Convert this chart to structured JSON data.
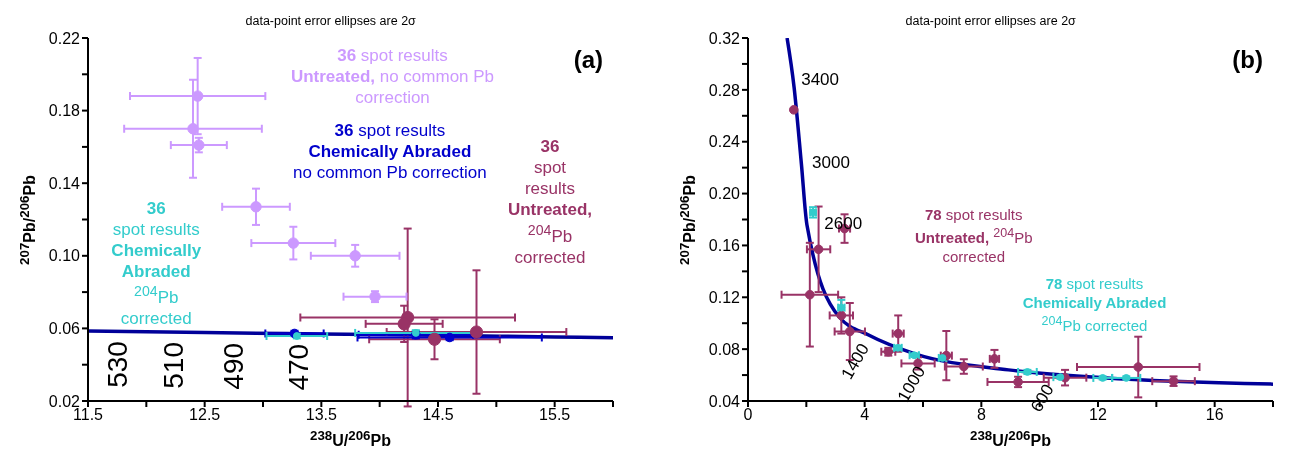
{
  "chart_data": [
    {
      "type": "scatter",
      "title": "data-point error ellipses are 2σ",
      "xlabel": "$^{238}$U/$^{206}$Pb",
      "ylabel": "$^{207}$Pb/$^{206}$Pb",
      "xlim": [
        11.5,
        16
      ],
      "xticks": [
        11.5,
        {
          "value": 12,
          "label": null
        },
        12.5,
        {
          "value": 13,
          "label": null
        },
        13.5,
        {
          "value": 14,
          "label": null
        },
        14.5,
        {
          "value": 15,
          "label": null
        },
        15.5,
        {
          "value": 16,
          "label": null
        }
      ],
      "ylim": [
        0.02,
        0.22
      ],
      "yticks": [
        0.02,
        {
          "value": 0.04,
          "label": null
        },
        0.06,
        {
          "value": 0.08,
          "label": null
        },
        {
          "value": 0.1,
          "label": "0.10"
        },
        {
          "value": 0.12,
          "label": null
        },
        0.14,
        {
          "value": 0.16,
          "label": null
        },
        0.18,
        {
          "value": 0.2,
          "label": null
        },
        0.22
      ],
      "annotations": [
        "(a)",
        {
          "text": "530",
          "x": 11.67,
          "y": 0.0585
        },
        {
          "text": "510",
          "x": 12.15,
          "y": 0.058
        },
        {
          "text": "490",
          "x": 12.66,
          "y": 0.0575
        },
        {
          "text": "470",
          "x": 13.22,
          "y": 0.057
        }
      ],
      "series": [
        {
          "type": "line",
          "color": "#000099",
          "marker": "none",
          "line_style": "solid",
          "x": [
            11.5,
            12.5,
            13.5,
            14.5,
            15.5,
            16
          ],
          "values": [
            0.0585,
            0.0577,
            0.0569,
            0.0562,
            0.0553,
            0.0549
          ]
        },
        {
          "name": "36 spot results Untreated, $^{204}$Pb corrected",
          "color": "#993366",
          "x": [
            14.24,
            14.83,
            14.21,
            14.47
          ],
          "values": [
            0.066,
            0.058,
            0.0625,
            0.054
          ],
          "xerrors": [
            0.92,
            0.77,
            0.33,
            0.56
          ],
          "errors": [
            0.049,
            0.034,
            0.01,
            0.011
          ]
        },
        {
          "name": "36 spot results Untreated, no common Pb correction",
          "color": "#cc99ff",
          "x": [
            12.4,
            12.44,
            12.45,
            12.94,
            13.26,
            13.79,
            13.96
          ],
          "values": [
            0.17,
            0.188,
            0.161,
            0.127,
            0.107,
            0.1,
            0.0775
          ],
          "xerrors": [
            0.59,
            0.58,
            0.24,
            0.29,
            0.36,
            0.38,
            0.27
          ],
          "errors": [
            0.027,
            0.021,
            0.004,
            0.01,
            0.009,
            0.006,
            0.003
          ]
        },
        {
          "name": "36 spot results Chemically Abraded no common Pb correction",
          "color": "#0000cc",
          "x": [
            13.27,
            14.31,
            14.6
          ],
          "values": [
            0.0572,
            0.0565,
            0.055
          ],
          "xerrors": [
            0.25,
            0.49,
            0.79
          ],
          "errors": [
            0.0015,
            0.002,
            0.0015
          ]
        },
        {
          "name": "36 spot results Chemically Abraded $^{204}$Pb corrected",
          "color": "#33cccc",
          "x": [
            13.29,
            14.31
          ],
          "values": [
            0.0558,
            0.0575
          ],
          "xerrors": [
            0.26,
            0.52
          ],
          "errors": [
            0.0013,
            0.0015
          ]
        }
      ]
    },
    {
      "type": "scatter",
      "title": "data-point error ellipses are 2σ",
      "xlabel": "$^{238}$U/$^{206}$Pb",
      "ylabel": "$^{207}$Pb/$^{206}$Pb",
      "xlim": [
        0,
        18
      ],
      "xticks": [
        0,
        {
          "value": 2,
          "label": null
        },
        4,
        {
          "value": 6,
          "label": null
        },
        8,
        {
          "value": 10,
          "label": null
        },
        12,
        {
          "value": 14,
          "label": null
        },
        16,
        {
          "value": 18,
          "label": null
        }
      ],
      "ylim": [
        0.04,
        0.32
      ],
      "yticks": [
        0.04,
        {
          "value": 0.06,
          "label": null
        },
        0.08,
        {
          "value": 0.1,
          "label": null
        },
        0.12,
        {
          "value": 0.14,
          "label": null
        },
        0.16,
        {
          "value": 0.18,
          "label": null
        },
        {
          "value": 0.2,
          "label": "0.20"
        },
        {
          "value": 0.22,
          "label": null
        },
        0.24,
        {
          "value": 0.26,
          "label": null
        },
        0.28,
        {
          "value": 0.3,
          "label": null
        },
        0.32
      ],
      "annotations": [
        "(b)",
        {
          "text": "3400",
          "x": 1.55,
          "y": 0.287
        },
        {
          "text": "3000",
          "x": 1.75,
          "y": 0.223
        },
        {
          "text": "2600",
          "x": 2.0,
          "y": 0.176
        },
        {
          "text": "1400",
          "x": 4.17,
          "y": 0.0905
        },
        {
          "text": "1000",
          "x": 6.1,
          "y": 0.073
        },
        {
          "text": "600",
          "x": 10.5,
          "y": 0.059
        }
      ],
      "series": [
        {
          "type": "line",
          "color": "#000099",
          "marker": "none",
          "line_style": "solid",
          "x": [
            1.34,
            1.58,
            1.83,
            2.02,
            3.12,
            4.17,
            5.7,
            8.93,
            12.16,
            18
          ],
          "values": [
            0.32,
            0.282,
            0.223,
            0.176,
            0.105,
            0.0905,
            0.0766,
            0.064,
            0.058,
            0.053
          ]
        },
        {
          "name": "78 spot results Untreated, $^{204}$Pb corrected",
          "color": "#993366",
          "x": [
            2.12,
            2.42,
            3.31,
            3.49,
            3.2,
            5.15,
            6.8,
            5.83,
            7.4,
            8.45,
            9.26,
            13.38,
            4.81,
            10.87,
            14.59,
            1.57
          ],
          "values": [
            0.122,
            0.157,
            0.173,
            0.0936,
            0.106,
            0.092,
            0.075,
            0.069,
            0.0666,
            0.0725,
            0.0547,
            0.0662,
            0.078,
            0.058,
            0.0553,
            0.2646
          ],
          "xerrors": [
            0.97,
            0.4,
            0.19,
            0.52,
            0.4,
            0.19,
            0.19,
            0.57,
            0.65,
            0.16,
            1.05,
            2.1,
            0.24,
            0.73,
            0.73,
            null
          ],
          "errors": [
            0.04,
            0.033,
            0.011,
            0.022,
            0.014,
            0.014,
            0.019,
            0.0047,
            0.0056,
            0.0069,
            0.004,
            0.0234,
            0.003,
            0.006,
            0.0037,
            null
          ]
        },
        {
          "name": "78 spot results Chemically Abraded $^{204}$Pb corrected",
          "color": "#33cccc",
          "x": [
            2.23,
            3.2,
            5.14,
            5.7,
            6.67,
            9.58,
            10.71,
            12.16,
            12.97
          ],
          "values": [
            0.1855,
            0.112,
            0.081,
            0.0753,
            0.0732,
            0.0624,
            0.0584,
            0.0578,
            0.0578
          ],
          "xerrors": [
            0.1,
            0.11,
            0.13,
            0.16,
            0.13,
            0.32,
            0.24,
            0.32,
            0.48
          ],
          "errors": [
            0.004,
            0.006,
            0.0016,
            0.0012,
            0.0016,
            0.0016,
            0.0012,
            0.0012,
            0.0012
          ]
        }
      ]
    }
  ]
}
